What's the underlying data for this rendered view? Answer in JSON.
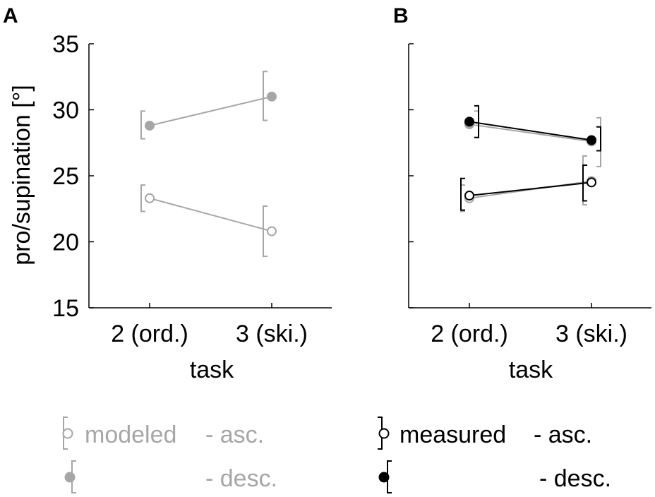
{
  "panel_labels": [
    "A",
    "B"
  ],
  "legend": {
    "modeled_label": "modeled",
    "asc_suffix": "- asc.",
    "desc_suffix": "- desc.",
    "measured_label": "measured",
    "modeled_color": "#a6a6a6",
    "measured_color": "#000000"
  },
  "chart_data": [
    {
      "type": "line",
      "panel": "A",
      "xlabel": "task",
      "ylabel": "pro/supination [°]",
      "categories": [
        "2 (ord.)",
        "3 (ski.)"
      ],
      "ylim": [
        15,
        35
      ],
      "yticks": [
        15,
        20,
        25,
        30,
        35
      ],
      "series": [
        {
          "group": "modeled",
          "direction": "desc",
          "marker": "filled",
          "color": "#a6a6a6",
          "values": [
            28.8,
            31.0
          ],
          "err_low": [
            27.8,
            29.2
          ],
          "err_high": [
            29.9,
            32.9
          ],
          "bracket_side": [
            "left",
            "left"
          ]
        },
        {
          "group": "modeled",
          "direction": "asc",
          "marker": "open",
          "color": "#a6a6a6",
          "values": [
            23.3,
            20.8
          ],
          "err_low": [
            22.3,
            18.9
          ],
          "err_high": [
            24.3,
            22.7
          ],
          "bracket_side": [
            "left",
            "left"
          ]
        }
      ]
    },
    {
      "type": "line",
      "panel": "B",
      "xlabel": "task",
      "ylabel": "",
      "categories": [
        "2 (ord.)",
        "3 (ski.)"
      ],
      "ylim": [
        15,
        35
      ],
      "yticks": [
        15,
        20,
        25,
        30,
        35
      ],
      "series": [
        {
          "group": "modeled",
          "direction": "desc",
          "marker": "filled",
          "color": "#a6a6a6",
          "values": [
            28.9,
            27.6
          ],
          "err_low": [
            27.9,
            25.7
          ],
          "err_high": [
            29.9,
            29.4
          ],
          "bracket_side": [
            "right",
            "right"
          ]
        },
        {
          "group": "measured",
          "direction": "desc",
          "marker": "filled",
          "color": "#000000",
          "values": [
            29.1,
            27.7
          ],
          "err_low": [
            27.9,
            26.9
          ],
          "err_high": [
            30.3,
            28.7
          ],
          "bracket_side": [
            "right",
            "right"
          ]
        },
        {
          "group": "modeled",
          "direction": "asc",
          "marker": "open",
          "color": "#a6a6a6",
          "values": [
            23.3,
            24.6
          ],
          "err_low": [
            22.3,
            22.8
          ],
          "err_high": [
            24.3,
            26.5
          ],
          "bracket_side": [
            "left",
            "left"
          ]
        },
        {
          "group": "measured",
          "direction": "asc",
          "marker": "open",
          "color": "#000000",
          "values": [
            23.5,
            24.5
          ],
          "err_low": [
            22.4,
            23.1
          ],
          "err_high": [
            24.8,
            25.8
          ],
          "bracket_side": [
            "left",
            "left"
          ]
        }
      ]
    }
  ]
}
